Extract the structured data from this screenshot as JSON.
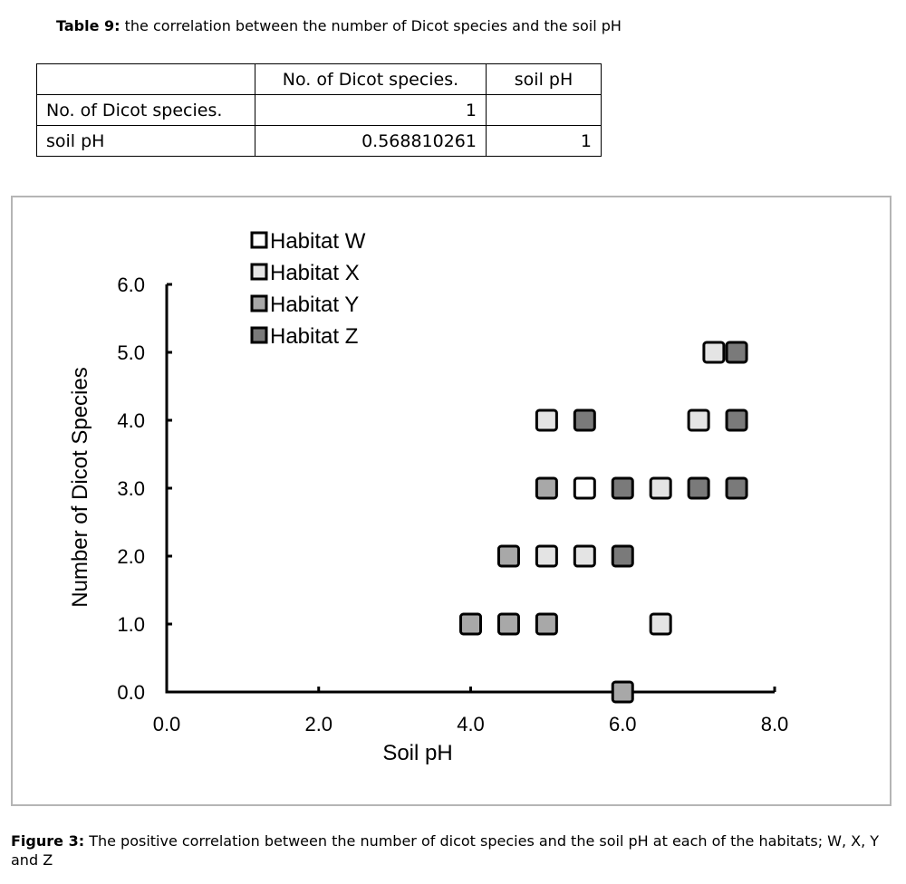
{
  "table_caption": {
    "label": "Table 9:",
    "text": " the correlation between the number of Dicot species and the soil pH"
  },
  "table": {
    "headers": [
      "",
      "No. of Dicot species.",
      "soil pH"
    ],
    "rows": [
      [
        "No. of Dicot species.",
        "1",
        ""
      ],
      [
        "soil pH",
        "0.568810261",
        "1"
      ]
    ]
  },
  "figure_caption": {
    "label": "Figure 3:",
    "text": " The positive correlation between the number of dicot species and the soil pH at each of the habitats; W, X, Y and Z"
  },
  "chart_data": {
    "type": "scatter",
    "title": "",
    "xlabel": "Soil pH",
    "ylabel": "Number of Dicot Species",
    "xlim": [
      0,
      8
    ],
    "ylim": [
      0,
      6
    ],
    "xticks": [
      "0.0",
      "2.0",
      "4.0",
      "6.0",
      "8.0"
    ],
    "yticks": [
      "0.0",
      "1.0",
      "2.0",
      "3.0",
      "4.0",
      "5.0",
      "6.0"
    ],
    "legend_position": "top-left",
    "series": [
      {
        "name": "Habitat W",
        "color": "#ffffff",
        "points": [
          [
            5.5,
            3
          ]
        ]
      },
      {
        "name": "Habitat X",
        "color": "#e4e4e4",
        "points": [
          [
            5.0,
            4
          ],
          [
            7.0,
            4
          ],
          [
            7.2,
            5
          ],
          [
            6.5,
            3
          ],
          [
            5.0,
            2
          ],
          [
            5.5,
            2
          ],
          [
            6.5,
            1
          ]
        ]
      },
      {
        "name": "Habitat Y",
        "color": "#a8a8a8",
        "points": [
          [
            4.0,
            1
          ],
          [
            4.5,
            1
          ],
          [
            5.0,
            1
          ],
          [
            4.5,
            2
          ],
          [
            5.0,
            3
          ],
          [
            6.0,
            0
          ]
        ]
      },
      {
        "name": "Habitat Z",
        "color": "#7a7a7a",
        "points": [
          [
            5.5,
            4
          ],
          [
            7.5,
            4
          ],
          [
            7.5,
            5
          ],
          [
            6.0,
            3
          ],
          [
            7.0,
            3
          ],
          [
            7.5,
            3
          ],
          [
            6.0,
            2
          ]
        ]
      }
    ]
  }
}
